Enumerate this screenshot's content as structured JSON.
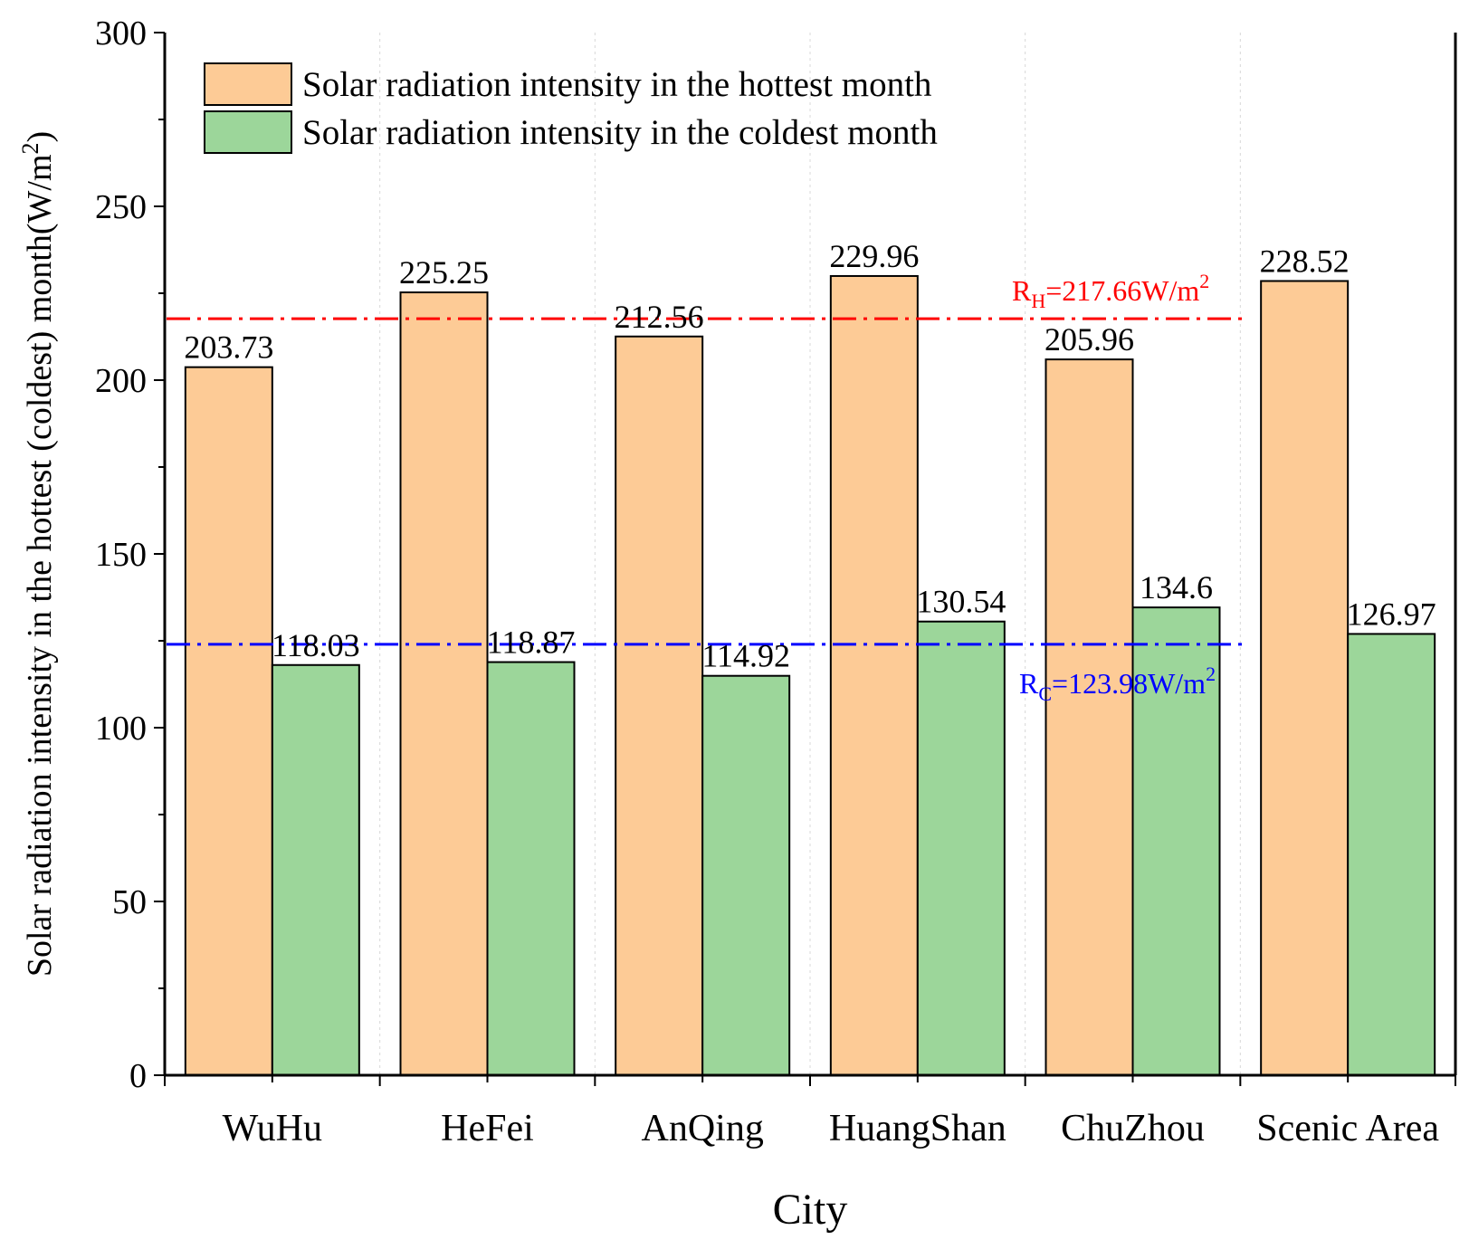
{
  "chart_data": {
    "type": "bar",
    "title": "",
    "xlabel": "City",
    "ylabel": "Solar radiation intensity in the hottest (coldest) month",
    "ylabel_unit": {
      "open": "(W/m",
      "sup": "2",
      "close": ")"
    },
    "ylim": [
      0,
      300
    ],
    "yticks": [
      0,
      50,
      100,
      150,
      200,
      250,
      300
    ],
    "grid": "vertical dotted",
    "legend_position": "top-left",
    "categories": [
      "WuHu",
      "HeFei",
      "AnQing",
      "HuangShan",
      "ChuZhou",
      "Scenic Area"
    ],
    "series": [
      {
        "name": "Solar radiation intensity in the hottest month",
        "color": "#fdcb96",
        "values": [
          203.73,
          225.25,
          212.56,
          229.96,
          205.96,
          228.52
        ],
        "labels": [
          "203.73",
          "225.25",
          "212.56",
          "229.96",
          "205.96",
          "228.52"
        ]
      },
      {
        "name": "Solar radiation intensity in the coldest month",
        "color": "#9cd69a",
        "values": [
          118.03,
          118.87,
          114.92,
          130.54,
          134.6,
          126.97
        ],
        "labels": [
          "118.03",
          "118.87",
          "114.92",
          "130.54",
          "134.6",
          "126.97"
        ]
      }
    ],
    "reference_lines": [
      {
        "id": "hot",
        "value": 217.66,
        "color": "#ff0000",
        "style": "dash-dot",
        "label_main": "R",
        "label_sub": "H",
        "label_rest": "=217.66W/m",
        "label_sup": "2"
      },
      {
        "id": "cold",
        "value": 123.98,
        "color": "#0000ff",
        "style": "dash-dot",
        "label_main": "R",
        "label_sub": "C",
        "label_rest": "=123.98W/m",
        "label_sup": "2"
      }
    ]
  }
}
